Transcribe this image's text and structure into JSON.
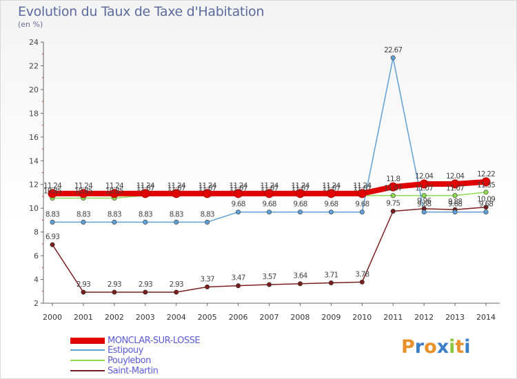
{
  "header": {
    "title": "Evolution du Taux de Taxe d'Habitation",
    "subtitle": "(en %)"
  },
  "brand": {
    "letters": [
      "P",
      "r",
      "o",
      "x",
      "i",
      "t",
      "i"
    ],
    "colors": [
      "#e8902a",
      "#3a7ec8",
      "#e8902a",
      "#3a7ec8",
      "#8cc63f",
      "#e8902a",
      "#3a7ec8"
    ]
  },
  "chart_data": {
    "type": "line",
    "x": [
      "2000",
      "2001",
      "2002",
      "2003",
      "2004",
      "2005",
      "2006",
      "2007",
      "2008",
      "2009",
      "2010",
      "2011",
      "2012",
      "2013",
      "2014"
    ],
    "ylim": [
      2,
      24
    ],
    "yticks": [
      "2",
      "4",
      "6",
      "8",
      "10",
      "12",
      "14",
      "16",
      "18",
      "20",
      "22",
      "24"
    ],
    "grid": false,
    "legend_position": "bottom-left",
    "series": [
      {
        "name": "MONCLAR-SUR-LOSSE",
        "color": "#e00000",
        "values": [
          11.24,
          11.24,
          11.24,
          11.24,
          11.24,
          11.24,
          11.24,
          11.24,
          11.24,
          11.24,
          11.24,
          11.8,
          12.04,
          12.04,
          12.22
        ],
        "labels": [
          "11.24",
          "11.24",
          "11.24",
          "11.24",
          "11.24",
          "11.24",
          "11.24",
          "11.24",
          "11.24",
          "11.24",
          "11.24",
          "11.8",
          "12.04",
          "12.04",
          "12.22"
        ]
      },
      {
        "name": "Estipouy",
        "color": "#5e9fd6",
        "values": [
          8.83,
          8.83,
          8.83,
          8.83,
          8.83,
          8.83,
          9.68,
          9.68,
          9.68,
          9.68,
          9.68,
          22.67,
          9.68,
          9.68,
          9.68
        ],
        "labels": [
          "8.83",
          "8.83",
          "8.83",
          "8.83",
          "8.83",
          "8.83",
          "9.68",
          "9.68",
          "9.68",
          "9.68",
          "9.68",
          "22.67",
          "9.68",
          "9.68",
          "9.68"
        ]
      },
      {
        "name": "Pouylebon",
        "color": "#8edb52",
        "values": [
          10.85,
          10.85,
          10.85,
          11.07,
          11.07,
          11.07,
          11.07,
          11.07,
          11.07,
          11.07,
          11.07,
          11.07,
          11.07,
          11.07,
          11.35
        ],
        "labels": [
          "10.85",
          "10.85",
          "10.85",
          "11.07",
          "11.07",
          "11.07",
          "11.07",
          "11.07",
          "11.07",
          "11.07",
          "11.07",
          "11.07",
          "11.07",
          "11.07",
          "11.35"
        ]
      },
      {
        "name": "Saint-Martin",
        "color": "#7a1d1d",
        "values": [
          6.93,
          2.93,
          2.93,
          2.93,
          2.93,
          3.37,
          3.47,
          3.57,
          3.64,
          3.71,
          3.78,
          9.75,
          9.96,
          9.88,
          10.09
        ],
        "labels": [
          "6.93",
          "2.93",
          "2.93",
          "2.93",
          "2.93",
          "3.37",
          "3.47",
          "3.57",
          "3.64",
          "3.71",
          "3.78",
          "9.75",
          "9.96",
          "9.88",
          "10.09"
        ]
      }
    ]
  }
}
